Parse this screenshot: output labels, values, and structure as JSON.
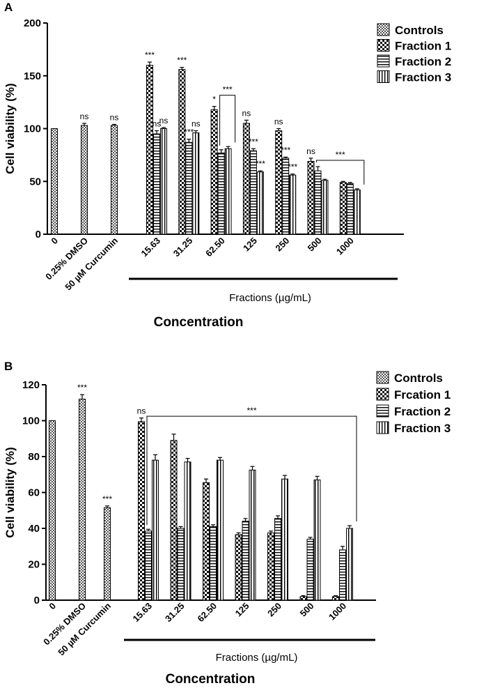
{
  "chart_data": [
    {
      "panel": "A",
      "type": "bar",
      "ylabel": "Cell viability (%)",
      "ylim": [
        0,
        200
      ],
      "yticks": [
        0,
        50,
        100,
        150,
        200
      ],
      "xlabel": "Concentration",
      "group_label": "Fractions (µg/mL)",
      "legend": [
        "Controls",
        "Fraction 1",
        "Fraction 2",
        "Fraction 3"
      ],
      "control_categories": [
        "0",
        "0.25% DMSO",
        "50 µM Curcumin"
      ],
      "control_values": [
        100,
        103,
        103
      ],
      "control_errors": [
        0,
        2,
        1
      ],
      "control_sig": [
        "",
        "ns",
        "ns"
      ],
      "fraction_categories": [
        "15.63",
        "31.25",
        "62.50",
        "125",
        "250",
        "500",
        "1000"
      ],
      "series": [
        {
          "name": "Fraction 1",
          "values": [
            160,
            156,
            118,
            105,
            98,
            69,
            49
          ],
          "errors": [
            3,
            2,
            3,
            3,
            2,
            3,
            1
          ],
          "sig": [
            "***",
            "***",
            "*",
            "ns",
            "ns",
            "ns",
            ""
          ]
        },
        {
          "name": "Fraction 2",
          "values": [
            95,
            87,
            77,
            79,
            72,
            60,
            48
          ],
          "errors": [
            3,
            3,
            3,
            2,
            1,
            4,
            1
          ],
          "sig": [
            "ns",
            "***",
            "",
            "***",
            "***",
            "",
            ""
          ]
        },
        {
          "name": "Fraction 3",
          "values": [
            100,
            96,
            81,
            59,
            56,
            51,
            42
          ],
          "errors": [
            1,
            2,
            2,
            1,
            1,
            1,
            1
          ],
          "sig": [
            "ns",
            "ns",
            "",
            "***",
            "***",
            "",
            ""
          ]
        }
      ],
      "brackets": [
        {
          "label": "***",
          "from": 2,
          "to": 2
        },
        {
          "label": "***",
          "from": 5,
          "to": 6
        }
      ]
    },
    {
      "panel": "B",
      "type": "bar",
      "ylabel": "Cell viability (%)",
      "ylim": [
        0,
        120
      ],
      "yticks": [
        0,
        20,
        40,
        60,
        80,
        100,
        120
      ],
      "xlabel": "Concentration",
      "group_label": "Fractions (µg/mL)",
      "legend": [
        "Controls",
        "Frcation 1",
        "Fraction 2",
        "Fraction 3"
      ],
      "control_categories": [
        "0",
        "0.25% DMSO",
        "50 µM Curcumin"
      ],
      "control_values": [
        100,
        112,
        51.5
      ],
      "control_errors": [
        0,
        2.5,
        1
      ],
      "control_sig": [
        "",
        "***",
        "***"
      ],
      "fraction_categories": [
        "15.63",
        "31.25",
        "62.50",
        "125",
        "250",
        "500",
        "1000"
      ],
      "series": [
        {
          "name": "Frcation 1",
          "values": [
            99.5,
            89,
            65.5,
            36.5,
            37.5,
            2,
            2
          ],
          "errors": [
            2,
            3.5,
            2,
            1,
            1,
            0.5,
            0.5
          ],
          "sig": [
            "ns",
            "",
            "",
            "",
            "",
            "",
            ""
          ]
        },
        {
          "name": "Fraction 2",
          "values": [
            38.5,
            40,
            41,
            44,
            45.5,
            34,
            28
          ],
          "errors": [
            1,
            1,
            1,
            1.5,
            1.5,
            1,
            2
          ],
          "sig": [
            "",
            "",
            "",
            "",
            "",
            "",
            ""
          ]
        },
        {
          "name": "Fraction 3",
          "values": [
            78,
            77,
            78,
            72.5,
            67.5,
            67,
            40
          ],
          "errors": [
            3,
            2,
            1.5,
            2,
            2,
            2,
            1.5
          ],
          "sig": [
            "",
            "",
            "",
            "",
            "",
            "",
            ""
          ]
        }
      ],
      "brackets": [
        {
          "label": "***",
          "from": 0,
          "to": 6
        }
      ]
    }
  ]
}
